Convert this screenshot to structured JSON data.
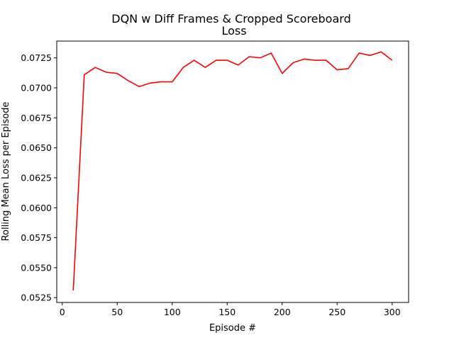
{
  "chart_data": {
    "type": "line",
    "title": "DQN w Diff Frames & Cropped Scoreboard",
    "subtitle": "Loss",
    "xlabel": "Episode #",
    "ylabel": "Rolling Mean Loss per Episode",
    "xlim": [
      -5,
      315
    ],
    "ylim": [
      0.0521,
      0.0739
    ],
    "xticks": [
      0,
      50,
      100,
      150,
      200,
      250,
      300
    ],
    "xtick_labels": [
      "0",
      "50",
      "100",
      "150",
      "200",
      "250",
      "300"
    ],
    "yticks": [
      0.0525,
      0.055,
      0.0575,
      0.06,
      0.0625,
      0.065,
      0.0675,
      0.07,
      0.0725
    ],
    "ytick_labels": [
      "0.0525",
      "0.0550",
      "0.0575",
      "0.0600",
      "0.0625",
      "0.0650",
      "0.0675",
      "0.0700",
      "0.0725"
    ],
    "grid": false,
    "series": [
      {
        "color": "#ff0000",
        "x": [
          10,
          20,
          30,
          40,
          50,
          60,
          70,
          80,
          90,
          100,
          110,
          120,
          130,
          140,
          150,
          160,
          170,
          180,
          190,
          200,
          210,
          220,
          230,
          240,
          250,
          260,
          270,
          280,
          290,
          300
        ],
        "y": [
          0.0531,
          0.0711,
          0.0717,
          0.0713,
          0.0712,
          0.0706,
          0.0701,
          0.0704,
          0.0705,
          0.0705,
          0.0717,
          0.0723,
          0.0717,
          0.0723,
          0.0723,
          0.0719,
          0.0726,
          0.0725,
          0.0729,
          0.0712,
          0.0721,
          0.0724,
          0.0723,
          0.0723,
          0.0715,
          0.0716,
          0.0729,
          0.0727,
          0.073,
          0.0723
        ]
      }
    ]
  }
}
